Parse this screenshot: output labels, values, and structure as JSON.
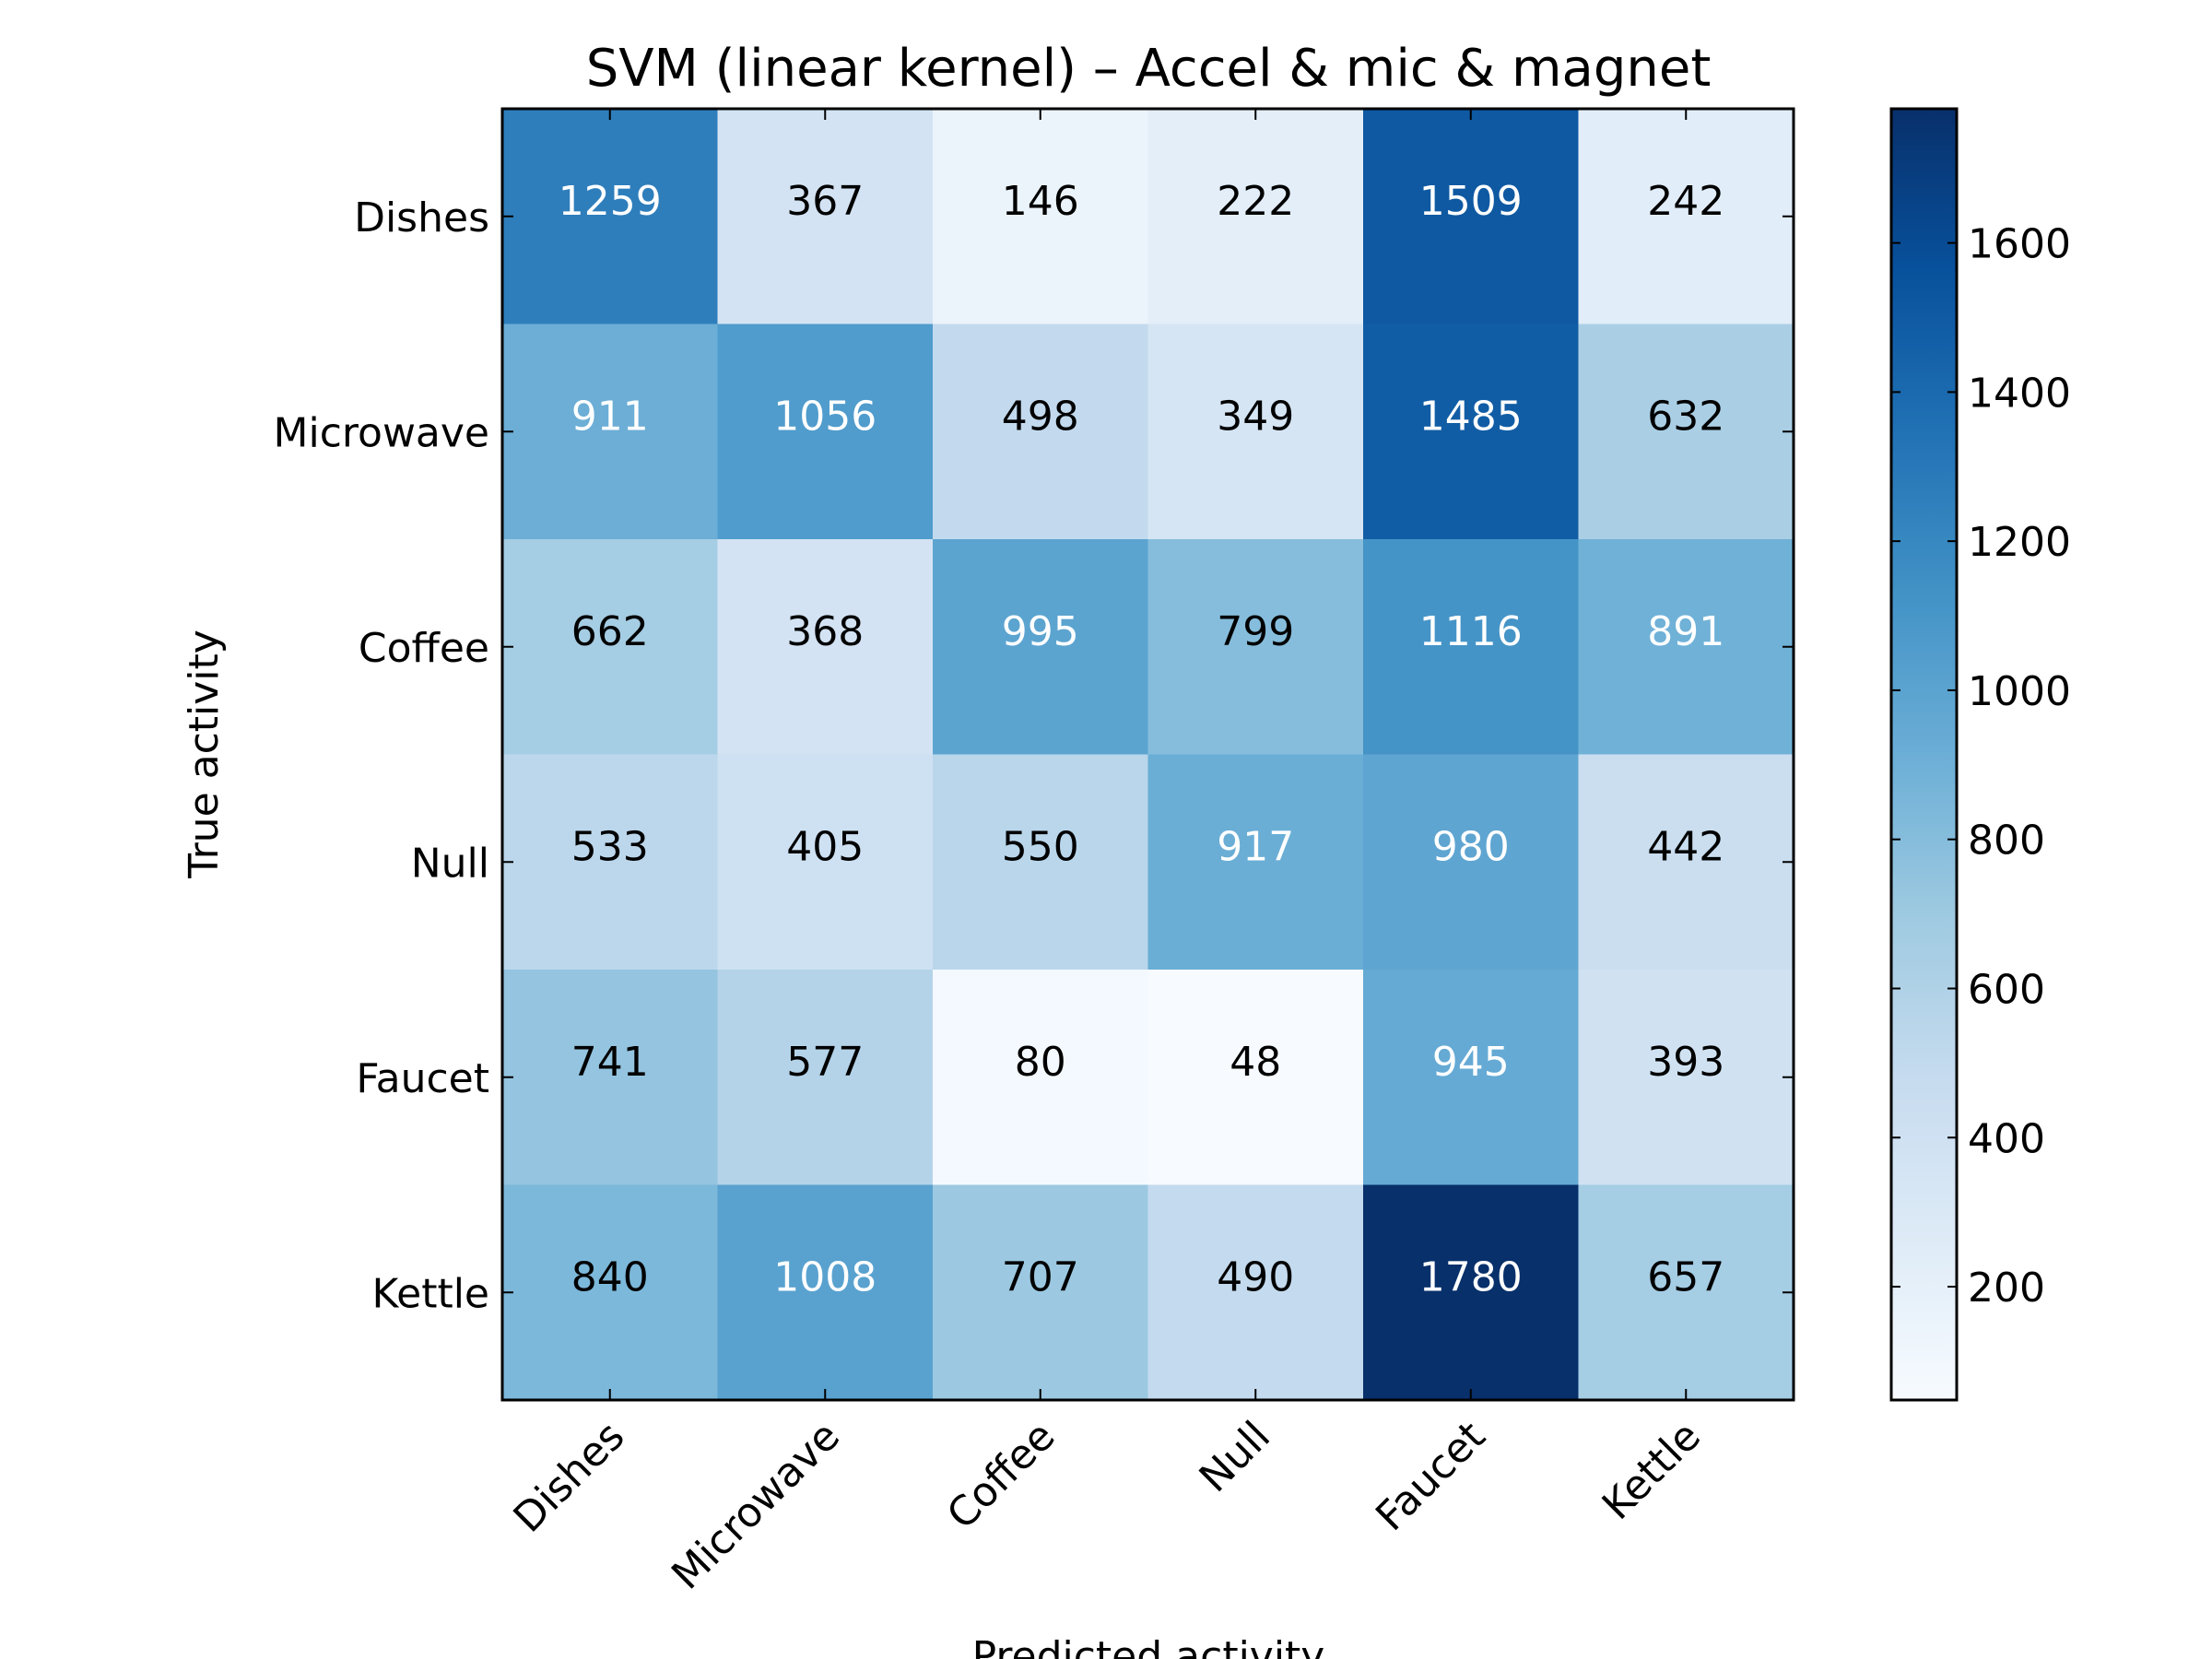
{
  "chart_data": {
    "type": "heatmap",
    "title": "SVM (linear kernel) – Accel & mic & magnet",
    "xlabel": "Predicted activity",
    "ylabel": "True activity",
    "x_categories": [
      "Dishes",
      "Microwave",
      "Coffee",
      "Null",
      "Faucet",
      "Kettle"
    ],
    "y_categories": [
      "Dishes",
      "Microwave",
      "Coffee",
      "Null",
      "Faucet",
      "Kettle"
    ],
    "matrix": [
      [
        1259,
        367,
        146,
        222,
        1509,
        242
      ],
      [
        911,
        1056,
        498,
        349,
        1485,
        632
      ],
      [
        662,
        368,
        995,
        799,
        1116,
        891
      ],
      [
        533,
        405,
        550,
        917,
        980,
        442
      ],
      [
        741,
        577,
        80,
        48,
        945,
        393
      ],
      [
        840,
        1008,
        707,
        490,
        1780,
        657
      ]
    ],
    "colorscale": "Blues",
    "color_range": [
      48,
      1780
    ],
    "colorbar_ticks": [
      200,
      400,
      600,
      800,
      1000,
      1200,
      1400,
      1600
    ],
    "grid": false
  }
}
